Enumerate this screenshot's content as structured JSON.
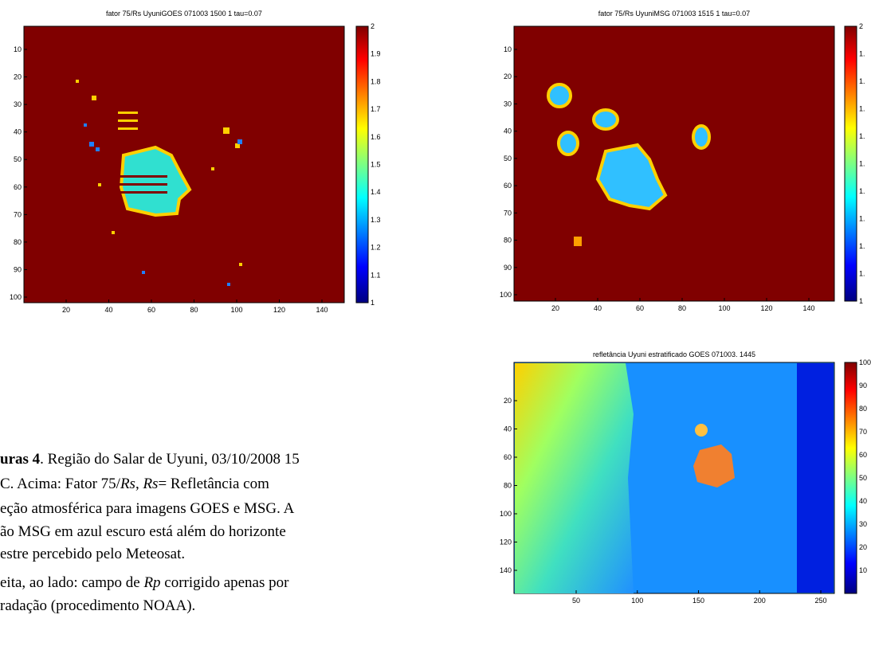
{
  "figures": [
    {
      "title": "fator 75/Rs  UyuniGOES 071003 1500 1 tau=0.07",
      "xticks": [
        20,
        40,
        60,
        80,
        100,
        120,
        140
      ],
      "yticks": [
        10,
        20,
        30,
        40,
        50,
        60,
        70,
        80,
        90,
        100
      ],
      "colorbar_ticks": [
        "2",
        "1.9",
        "1.8",
        "1.7",
        "1.6",
        "1.5",
        "1.4",
        "1.3",
        "1.2",
        "1.1",
        "1"
      ]
    },
    {
      "title": "fator 75/Rs  UyuniMSG 071003 1515 1 tau=0.07",
      "xticks": [
        20,
        40,
        60,
        80,
        100,
        120,
        140
      ],
      "yticks": [
        10,
        20,
        30,
        40,
        50,
        60,
        70,
        80,
        90,
        100
      ],
      "colorbar_ticks": [
        "2",
        "1.",
        "1.",
        "1.",
        "1.",
        "1.",
        "1.",
        "1.",
        "1.",
        "1.",
        "1"
      ]
    },
    {
      "title": "refletância  Uyuni estratificado GOES  071003. 1445",
      "xticks": [
        50,
        100,
        150,
        200,
        250
      ],
      "yticks": [
        20,
        40,
        60,
        80,
        100,
        120,
        140
      ],
      "colorbar_ticks": [
        "100",
        "90",
        "80",
        "70",
        "60",
        "50",
        "40",
        "30",
        "20",
        "10"
      ]
    }
  ],
  "caption": {
    "line1": [
      "uras 4",
      ". Região do Salar de Uyuni, 03/10/2008 15"
    ],
    "line2": [
      "C. Acima: Fator 75/",
      "Rs",
      ", ",
      "Rs",
      "= Refletância com"
    ],
    "line3": "eção atmosférica para imagens GOES e MSG. A",
    "line4": "ão MSG em azul escuro está além do horizonte",
    "line5": "estre percebido pelo Meteosat.",
    "line6": [
      "eita, ao lado: campo de ",
      "Rp",
      " corrigido apenas por"
    ],
    "line7": "radação (procedimento NOAA)."
  }
}
